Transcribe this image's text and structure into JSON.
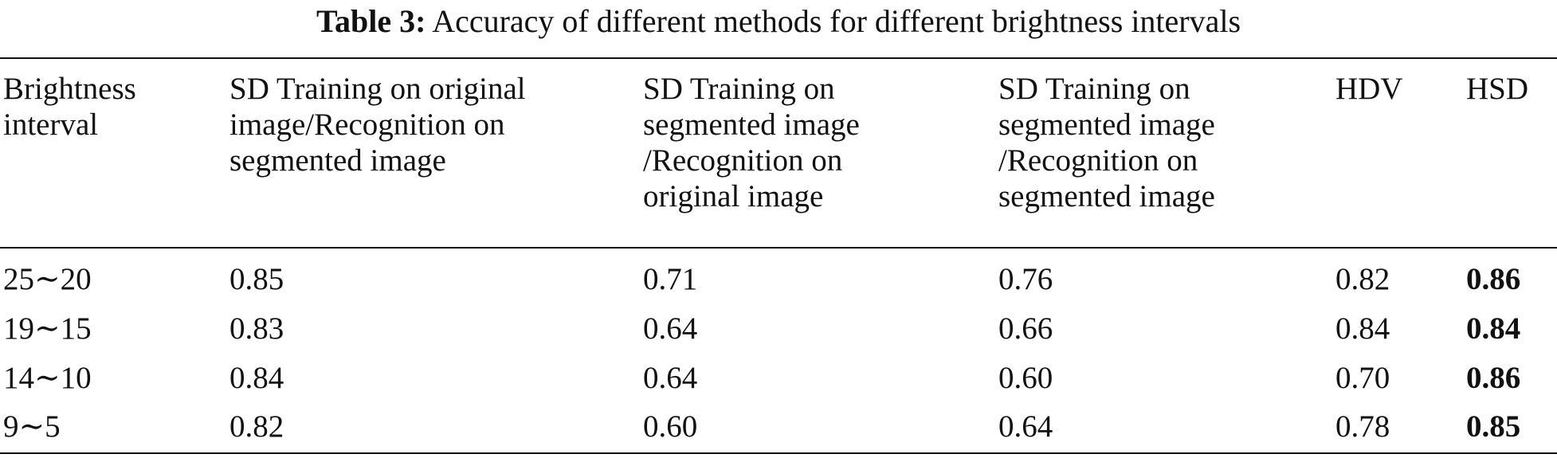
{
  "caption": {
    "label": "Table 3:",
    "text": "Accuracy of different methods for different brightness intervals"
  },
  "table": {
    "headers": [
      [
        "Brightness",
        "interval"
      ],
      [
        "SD Training on original",
        "image/Recognition on",
        "segmented image"
      ],
      [
        "SD Training on",
        "segmented image",
        "/Recognition on",
        "original image"
      ],
      [
        "SD Training on",
        "segmented image",
        "/Recognition on",
        "segmented image"
      ],
      [
        "HDV"
      ],
      [
        "HSD"
      ]
    ],
    "rows": [
      {
        "interval": "25∼20",
        "sd_orig_seg": "0.85",
        "sd_seg_orig": "0.71",
        "sd_seg_seg": "0.76",
        "hdv": "0.82",
        "hsd": "0.86"
      },
      {
        "interval": "19∼15",
        "sd_orig_seg": "0.83",
        "sd_seg_orig": "0.64",
        "sd_seg_seg": "0.66",
        "hdv": "0.84",
        "hsd": "0.84"
      },
      {
        "interval": "14∼10",
        "sd_orig_seg": "0.84",
        "sd_seg_orig": "0.64",
        "sd_seg_seg": "0.60",
        "hdv": "0.70",
        "hsd": "0.86"
      },
      {
        "interval": "9∼5",
        "sd_orig_seg": "0.82",
        "sd_seg_orig": "0.60",
        "sd_seg_seg": "0.64",
        "hdv": "0.78",
        "hsd": "0.85"
      }
    ]
  }
}
